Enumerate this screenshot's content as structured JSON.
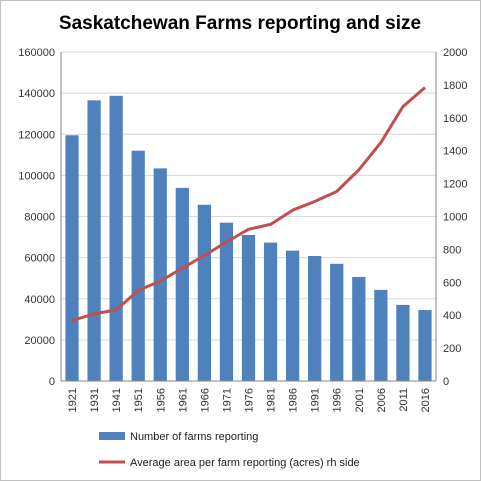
{
  "chart_data": {
    "type": "bar+line",
    "title": "Saskatchewan Farms reporting and size",
    "categories": [
      "1921",
      "1931",
      "1941",
      "1951",
      "1956",
      "1961",
      "1966",
      "1971",
      "1976",
      "1981",
      "1986",
      "1991",
      "1996",
      "2001",
      "2006",
      "2011",
      "2016"
    ],
    "series": [
      {
        "name": "Number of farms reporting",
        "type": "bar",
        "axis": "left",
        "color": "#4f81bd",
        "values": [
          119500,
          136500,
          138700,
          112000,
          103400,
          93900,
          85700,
          77000,
          71000,
          67300,
          63400,
          60800,
          57000,
          50600,
          44300,
          37000,
          34500
        ]
      },
      {
        "name": "Average area per farm reporting (acres) rh side",
        "type": "line",
        "axis": "right",
        "color": "#c0504d",
        "values": [
          368,
          408,
          432,
          550,
          608,
          686,
          763,
          845,
          922,
          952,
          1038,
          1091,
          1152,
          1283,
          1450,
          1668,
          1784
        ]
      }
    ],
    "ylim_left": [
      0,
      160000
    ],
    "ylim_right": [
      0,
      2000
    ],
    "yticks_left": [
      "0",
      "20000",
      "40000",
      "60000",
      "80000",
      "100000",
      "120000",
      "140000",
      "160000"
    ],
    "yticks_right": [
      "0",
      "200",
      "400",
      "600",
      "800",
      "1000",
      "1200",
      "1400",
      "1600",
      "1800",
      "2000"
    ],
    "grid": true,
    "legend_position": "bottom"
  }
}
